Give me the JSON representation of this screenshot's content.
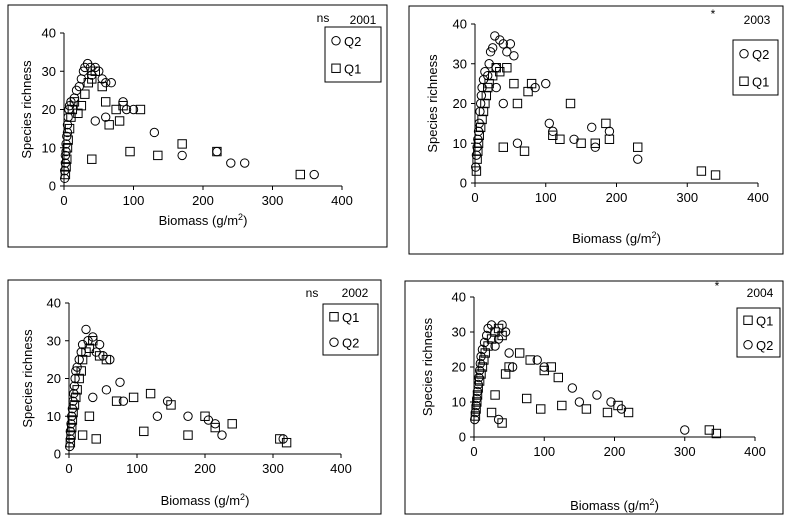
{
  "chart_data": [
    {
      "type": "scatter",
      "year": "2001",
      "significance": "ns",
      "xlabel": "Biomass (g/m",
      "xlabel_sup": "2",
      "xlabel_end": ")",
      "ylabel": "Species richness",
      "xlim": [
        0,
        400
      ],
      "ylim": [
        0,
        40
      ],
      "xticks": [
        "0",
        "100",
        "200",
        "300",
        "400"
      ],
      "yticks": [
        "0",
        "10",
        "20",
        "30",
        "40"
      ],
      "legend_order": [
        "Q2",
        "Q1"
      ],
      "series": [
        {
          "name": "Q2",
          "marker": "circle",
          "points": [
            [
              1,
              2
            ],
            [
              1,
              4
            ],
            [
              2,
              6
            ],
            [
              2,
              8
            ],
            [
              3,
              9
            ],
            [
              3,
              11
            ],
            [
              4,
              13
            ],
            [
              5,
              14
            ],
            [
              5,
              16
            ],
            [
              6,
              18
            ],
            [
              7,
              20
            ],
            [
              8,
              21
            ],
            [
              10,
              22
            ],
            [
              15,
              23
            ],
            [
              18,
              25
            ],
            [
              22,
              26
            ],
            [
              25,
              28
            ],
            [
              28,
              30
            ],
            [
              30,
              31
            ],
            [
              34,
              32
            ],
            [
              38,
              31
            ],
            [
              40,
              29
            ],
            [
              45,
              31
            ],
            [
              50,
              30
            ],
            [
              55,
              28
            ],
            [
              60,
              27
            ],
            [
              68,
              27
            ],
            [
              45,
              17
            ],
            [
              60,
              18
            ],
            [
              85,
              22
            ],
            [
              90,
              20
            ],
            [
              100,
              20
            ],
            [
              130,
              14
            ],
            [
              170,
              8
            ],
            [
              220,
              9
            ],
            [
              240,
              6
            ],
            [
              260,
              6
            ],
            [
              360,
              3
            ]
          ]
        },
        {
          "name": "Q1",
          "marker": "square",
          "points": [
            [
              2,
              3
            ],
            [
              3,
              5
            ],
            [
              4,
              7
            ],
            [
              5,
              10
            ],
            [
              6,
              12
            ],
            [
              8,
              15
            ],
            [
              10,
              18
            ],
            [
              12,
              20
            ],
            [
              15,
              22
            ],
            [
              20,
              19
            ],
            [
              25,
              21
            ],
            [
              30,
              24
            ],
            [
              35,
              27
            ],
            [
              40,
              28
            ],
            [
              40,
              7
            ],
            [
              45,
              30
            ],
            [
              55,
              26
            ],
            [
              60,
              22
            ],
            [
              65,
              16
            ],
            [
              75,
              20
            ],
            [
              80,
              17
            ],
            [
              85,
              21
            ],
            [
              95,
              9
            ],
            [
              110,
              20
            ],
            [
              135,
              8
            ],
            [
              170,
              11
            ],
            [
              220,
              9
            ],
            [
              340,
              3
            ]
          ]
        }
      ]
    },
    {
      "type": "scatter",
      "year": "2003",
      "significance": "*",
      "xlabel": "Biomass (g/m",
      "xlabel_sup": "2",
      "xlabel_end": ")",
      "ylabel": "Species richness",
      "xlim": [
        0,
        400
      ],
      "ylim": [
        0,
        40
      ],
      "xticks": [
        "0",
        "100",
        "200",
        "300",
        "400"
      ],
      "yticks": [
        "0",
        "10",
        "20",
        "30",
        "40"
      ],
      "legend_order": [
        "Q2",
        "Q1"
      ],
      "series": [
        {
          "name": "Q2",
          "marker": "circle",
          "points": [
            [
              1,
              4
            ],
            [
              2,
              7
            ],
            [
              3,
              9
            ],
            [
              4,
              11
            ],
            [
              5,
              13
            ],
            [
              6,
              15
            ],
            [
              7,
              18
            ],
            [
              8,
              20
            ],
            [
              9,
              22
            ],
            [
              10,
              24
            ],
            [
              12,
              26
            ],
            [
              14,
              28
            ],
            [
              18,
              27
            ],
            [
              20,
              30
            ],
            [
              22,
              33
            ],
            [
              25,
              34
            ],
            [
              28,
              37
            ],
            [
              30,
              29
            ],
            [
              35,
              36
            ],
            [
              40,
              35
            ],
            [
              45,
              33
            ],
            [
              50,
              35
            ],
            [
              55,
              32
            ],
            [
              30,
              24
            ],
            [
              40,
              20
            ],
            [
              60,
              10
            ],
            [
              85,
              24
            ],
            [
              100,
              25
            ],
            [
              105,
              15
            ],
            [
              110,
              13
            ],
            [
              140,
              11
            ],
            [
              165,
              14
            ],
            [
              170,
              9
            ],
            [
              190,
              13
            ],
            [
              230,
              6
            ]
          ]
        },
        {
          "name": "Q1",
          "marker": "square",
          "points": [
            [
              2,
              3
            ],
            [
              3,
              6
            ],
            [
              4,
              8
            ],
            [
              5,
              10
            ],
            [
              6,
              12
            ],
            [
              8,
              14
            ],
            [
              10,
              16
            ],
            [
              12,
              18
            ],
            [
              14,
              20
            ],
            [
              16,
              22
            ],
            [
              18,
              24
            ],
            [
              20,
              25
            ],
            [
              25,
              27
            ],
            [
              30,
              29
            ],
            [
              35,
              28
            ],
            [
              40,
              9
            ],
            [
              45,
              29
            ],
            [
              55,
              25
            ],
            [
              60,
              20
            ],
            [
              70,
              8
            ],
            [
              75,
              23
            ],
            [
              80,
              25
            ],
            [
              110,
              12
            ],
            [
              120,
              11
            ],
            [
              135,
              20
            ],
            [
              150,
              10
            ],
            [
              170,
              10
            ],
            [
              185,
              15
            ],
            [
              190,
              11
            ],
            [
              230,
              9
            ],
            [
              320,
              3
            ],
            [
              340,
              2
            ]
          ]
        }
      ]
    },
    {
      "type": "scatter",
      "year": "2002",
      "significance": "ns",
      "xlabel": "Biomass (g/m",
      "xlabel_sup": "2",
      "xlabel_end": ")",
      "ylabel": "Species richness",
      "xlim": [
        0,
        400
      ],
      "ylim": [
        0,
        40
      ],
      "xticks": [
        "0",
        "100",
        "200",
        "300",
        "400"
      ],
      "yticks": [
        "0",
        "10",
        "20",
        "30",
        "40"
      ],
      "legend_order": [
        "Q1",
        "Q2"
      ],
      "series": [
        {
          "name": "Q1",
          "marker": "square",
          "points": [
            [
              2,
              3
            ],
            [
              3,
              5
            ],
            [
              4,
              7
            ],
            [
              5,
              9
            ],
            [
              6,
              11
            ],
            [
              8,
              13
            ],
            [
              10,
              15
            ],
            [
              12,
              17
            ],
            [
              15,
              20
            ],
            [
              18,
              22
            ],
            [
              20,
              25
            ],
            [
              25,
              27
            ],
            [
              30,
              28
            ],
            [
              35,
              30
            ],
            [
              20,
              5
            ],
            [
              30,
              10
            ],
            [
              40,
              4
            ],
            [
              45,
              26
            ],
            [
              55,
              25
            ],
            [
              70,
              14
            ],
            [
              95,
              15
            ],
            [
              110,
              6
            ],
            [
              120,
              16
            ],
            [
              150,
              13
            ],
            [
              175,
              5
            ],
            [
              200,
              10
            ],
            [
              215,
              7
            ],
            [
              240,
              8
            ],
            [
              310,
              4
            ],
            [
              320,
              3
            ]
          ]
        },
        {
          "name": "Q2",
          "marker": "circle",
          "points": [
            [
              1,
              2
            ],
            [
              2,
              4
            ],
            [
              2,
              6
            ],
            [
              3,
              8
            ],
            [
              4,
              10
            ],
            [
              5,
              12
            ],
            [
              6,
              14
            ],
            [
              7,
              16
            ],
            [
              8,
              18
            ],
            [
              9,
              20
            ],
            [
              10,
              22
            ],
            [
              12,
              23
            ],
            [
              15,
              25
            ],
            [
              18,
              27
            ],
            [
              20,
              29
            ],
            [
              25,
              33
            ],
            [
              28,
              30
            ],
            [
              35,
              31
            ],
            [
              40,
              27
            ],
            [
              45,
              29
            ],
            [
              50,
              26
            ],
            [
              60,
              25
            ],
            [
              35,
              15
            ],
            [
              55,
              17
            ],
            [
              75,
              19
            ],
            [
              80,
              14
            ],
            [
              130,
              10
            ],
            [
              145,
              14
            ],
            [
              175,
              10
            ],
            [
              205,
              9
            ],
            [
              215,
              8
            ],
            [
              225,
              5
            ],
            [
              315,
              4
            ]
          ]
        }
      ]
    },
    {
      "type": "scatter",
      "year": "2004",
      "significance": "*",
      "xlabel": "Biomass (g/m",
      "xlabel_sup": "2",
      "xlabel_end": ")",
      "ylabel": "Species richness",
      "xlim": [
        0,
        400
      ],
      "ylim": [
        0,
        40
      ],
      "xticks": [
        "0",
        "100",
        "200",
        "300",
        "400"
      ],
      "yticks": [
        "0",
        "10",
        "20",
        "30",
        "40"
      ],
      "legend_order": [
        "Q1",
        "Q2"
      ],
      "series": [
        {
          "name": "Q1",
          "marker": "square",
          "points": [
            [
              2,
              6
            ],
            [
              3,
              8
            ],
            [
              4,
              10
            ],
            [
              5,
              12
            ],
            [
              6,
              14
            ],
            [
              8,
              16
            ],
            [
              10,
              18
            ],
            [
              12,
              20
            ],
            [
              14,
              22
            ],
            [
              16,
              24
            ],
            [
              20,
              26
            ],
            [
              25,
              28
            ],
            [
              30,
              30
            ],
            [
              35,
              31
            ],
            [
              40,
              29
            ],
            [
              45,
              18
            ],
            [
              25,
              7
            ],
            [
              30,
              12
            ],
            [
              40,
              4
            ],
            [
              50,
              20
            ],
            [
              65,
              24
            ],
            [
              75,
              11
            ],
            [
              80,
              22
            ],
            [
              95,
              8
            ],
            [
              100,
              19
            ],
            [
              110,
              20
            ],
            [
              120,
              17
            ],
            [
              125,
              9
            ],
            [
              160,
              8
            ],
            [
              190,
              7
            ],
            [
              205,
              9
            ],
            [
              220,
              7
            ],
            [
              335,
              2
            ],
            [
              345,
              1
            ]
          ]
        },
        {
          "name": "Q2",
          "marker": "circle",
          "points": [
            [
              1,
              5
            ],
            [
              2,
              7
            ],
            [
              3,
              9
            ],
            [
              4,
              11
            ],
            [
              5,
              13
            ],
            [
              6,
              15
            ],
            [
              7,
              17
            ],
            [
              8,
              19
            ],
            [
              9,
              21
            ],
            [
              10,
              23
            ],
            [
              12,
              25
            ],
            [
              15,
              27
            ],
            [
              18,
              29
            ],
            [
              20,
              31
            ],
            [
              25,
              32
            ],
            [
              30,
              26
            ],
            [
              35,
              28
            ],
            [
              40,
              32
            ],
            [
              45,
              30
            ],
            [
              50,
              24
            ],
            [
              35,
              5
            ],
            [
              55,
              20
            ],
            [
              90,
              22
            ],
            [
              100,
              20
            ],
            [
              140,
              14
            ],
            [
              150,
              10
            ],
            [
              175,
              12
            ],
            [
              195,
              10
            ],
            [
              210,
              8
            ],
            [
              300,
              2
            ]
          ]
        }
      ]
    }
  ]
}
